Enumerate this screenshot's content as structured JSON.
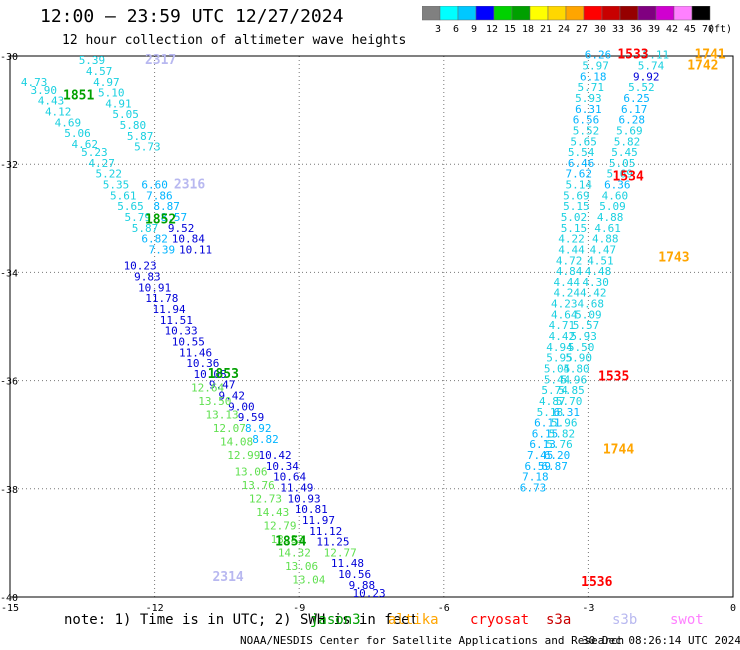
{
  "header": {
    "title": "12:00 — 23:59 UTC 12/27/2024",
    "subtitle": "12 hour collection of altimeter wave heights"
  },
  "colorbar": {
    "labels": [
      "3",
      "6",
      "9",
      "12",
      "15",
      "18",
      "21",
      "24",
      "27",
      "30",
      "33",
      "36",
      "39",
      "42",
      "45",
      "70"
    ],
    "unit": "(ft)",
    "colors": [
      "#808080",
      "#00ffff",
      "#00c8ff",
      "#0000ff",
      "#00d200",
      "#00a000",
      "#ffff00",
      "#ffd700",
      "#ffa500",
      "#ff0000",
      "#c80000",
      "#960000",
      "#800080",
      "#d000d0",
      "#ff80ff",
      "#000000"
    ]
  },
  "footnote": {
    "note": "note:  1) Time is in UTC; 2) SWH is in feet",
    "credit": "NOAA/NESDIS Center for Satellite Applications and Research",
    "timestamp": "30 Dec 08:26:14 UTC 2024"
  },
  "legend": [
    {
      "label": "jason3",
      "color": "#00a000"
    },
    {
      "label": "altika",
      "color": "#ffa500"
    },
    {
      "label": "cryosat",
      "color": "#ff0000"
    },
    {
      "label": "s3a",
      "color": "#c80000"
    },
    {
      "label": "s3b",
      "color": "#b8b8f0"
    },
    {
      "label": "swot",
      "color": "#ff80ff"
    }
  ],
  "chart_data": {
    "type": "scatter",
    "title": "12 hour collection of altimeter wave heights",
    "xlim": [
      -15,
      0
    ],
    "ylim": [
      -40,
      -30
    ],
    "x_ticks": [
      "-15",
      "-12",
      "-9",
      "-6",
      "-3",
      "0"
    ],
    "y_ticks": [
      "-30",
      "-32",
      "-34",
      "-36",
      "-38",
      "-40"
    ],
    "grid": "dotted",
    "track_labels": [
      {
        "text": "2317",
        "x": -12.2,
        "y": -30.15,
        "color": "#b8b8f0"
      },
      {
        "text": "1851",
        "x": -13.9,
        "y": -30.8,
        "color": "#00a000"
      },
      {
        "text": "2316",
        "x": -11.6,
        "y": -32.45,
        "color": "#b8b8f0"
      },
      {
        "text": "1852",
        "x": -12.2,
        "y": -33.1,
        "color": "#00a000"
      },
      {
        "text": "1853",
        "x": -10.9,
        "y": -35.95,
        "color": "#00a000"
      },
      {
        "text": "1854",
        "x": -9.5,
        "y": -39.05,
        "color": "#00a000"
      },
      {
        "text": "2314",
        "x": -10.8,
        "y": -39.7,
        "color": "#b8b8f0"
      },
      {
        "text": "1533",
        "x": -2.4,
        "y": -30.05,
        "color": "#ff0000"
      },
      {
        "text": "1741",
        "x": -0.8,
        "y": -30.05,
        "color": "#ffa500"
      },
      {
        "text": "1742",
        "x": -0.95,
        "y": -30.25,
        "color": "#ffa500"
      },
      {
        "text": "1534",
        "x": -2.5,
        "y": -32.3,
        "color": "#ff0000"
      },
      {
        "text": "1743",
        "x": -1.55,
        "y": -33.8,
        "color": "#ffa500"
      },
      {
        "text": "1535",
        "x": -2.8,
        "y": -36.0,
        "color": "#ff0000"
      },
      {
        "text": "1744",
        "x": -2.7,
        "y": -37.35,
        "color": "#ffa500"
      },
      {
        "text": "1536",
        "x": -3.15,
        "y": -39.8,
        "color": "#ff0000"
      }
    ],
    "series": [
      {
        "name": "jason3",
        "track": "1851-1852",
        "points": [
          {
            "x": -14.5,
            "y": -30.55,
            "v": 4.73
          },
          {
            "x": -14.3,
            "y": -30.7,
            "v": 3.9
          },
          {
            "x": -14.15,
            "y": -30.9,
            "v": 4.43
          },
          {
            "x": -14.0,
            "y": -31.1,
            "v": 4.12
          },
          {
            "x": -13.8,
            "y": -31.3,
            "v": 4.69
          },
          {
            "x": -13.6,
            "y": -31.5,
            "v": 5.06
          },
          {
            "x": -13.45,
            "y": -31.7,
            "v": 4.62
          },
          {
            "x": -13.25,
            "y": -31.85,
            "v": 5.23
          },
          {
            "x": -13.1,
            "y": -32.05,
            "v": 4.27
          },
          {
            "x": -12.95,
            "y": -32.25,
            "v": 5.22
          },
          {
            "x": -12.8,
            "y": -32.45,
            "v": 5.35
          },
          {
            "x": -12.65,
            "y": -32.65,
            "v": 5.61
          },
          {
            "x": -12.5,
            "y": -32.85,
            "v": 5.65
          },
          {
            "x": -12.35,
            "y": -33.05,
            "v": 5.79
          },
          {
            "x": -12.2,
            "y": -33.25,
            "v": 5.87
          },
          {
            "x": -12.0,
            "y": -33.45,
            "v": 6.82
          },
          {
            "x": -11.85,
            "y": -33.65,
            "v": 7.39
          }
        ]
      },
      {
        "name": "jason3",
        "track": "1852-1853",
        "points": [
          {
            "x": -12.3,
            "y": -33.95,
            "v": 10.23
          },
          {
            "x": -12.15,
            "y": -34.15,
            "v": 9.83
          },
          {
            "x": -12.0,
            "y": -34.35,
            "v": 10.91
          },
          {
            "x": -11.85,
            "y": -34.55,
            "v": 11.78
          },
          {
            "x": -11.7,
            "y": -34.75,
            "v": 11.94
          },
          {
            "x": -11.55,
            "y": -34.95,
            "v": 11.51
          },
          {
            "x": -11.45,
            "y": -35.15,
            "v": 10.33
          },
          {
            "x": -11.3,
            "y": -35.35,
            "v": 10.55
          },
          {
            "x": -11.15,
            "y": -35.55,
            "v": 11.46
          },
          {
            "x": -11.0,
            "y": -35.75,
            "v": 10.36
          },
          {
            "x": -10.85,
            "y": -35.95,
            "v": 10.08
          },
          {
            "x": -10.6,
            "y": -36.15,
            "v": 9.47
          },
          {
            "x": -10.4,
            "y": -36.35,
            "v": 9.42
          },
          {
            "x": -10.2,
            "y": -36.55,
            "v": 9.0
          },
          {
            "x": -10.0,
            "y": -36.75,
            "v": 9.59
          },
          {
            "x": -9.85,
            "y": -36.95,
            "v": 8.92
          },
          {
            "x": -9.7,
            "y": -37.15,
            "v": 8.82
          }
        ]
      },
      {
        "name": "jason3",
        "track": "1853-1854",
        "points": [
          {
            "x": -10.9,
            "y": -36.2,
            "v": 12.64
          },
          {
            "x": -10.75,
            "y": -36.45,
            "v": 13.5
          },
          {
            "x": -10.6,
            "y": -36.7,
            "v": 13.13
          },
          {
            "x": -10.45,
            "y": -36.95,
            "v": 12.07
          },
          {
            "x": -10.3,
            "y": -37.2,
            "v": 14.08
          },
          {
            "x": -10.15,
            "y": -37.45,
            "v": 12.99
          },
          {
            "x": -10.0,
            "y": -37.75,
            "v": 13.06
          },
          {
            "x": -9.85,
            "y": -38.0,
            "v": 13.76
          },
          {
            "x": -9.7,
            "y": -38.25,
            "v": 12.73
          },
          {
            "x": -9.55,
            "y": -38.5,
            "v": 14.43
          },
          {
            "x": -9.4,
            "y": -38.75,
            "v": 12.79
          },
          {
            "x": -9.25,
            "y": -39.0,
            "v": 13.83
          },
          {
            "x": -9.1,
            "y": -39.25,
            "v": 14.32
          },
          {
            "x": -8.95,
            "y": -39.5,
            "v": 13.06
          },
          {
            "x": -8.8,
            "y": -39.75,
            "v": 13.04
          }
        ]
      },
      {
        "name": "jason3",
        "track": "1854",
        "points": [
          {
            "x": -9.5,
            "y": -37.45,
            "v": 10.42
          },
          {
            "x": -9.35,
            "y": -37.65,
            "v": 10.34
          },
          {
            "x": -9.2,
            "y": -37.85,
            "v": 10.64
          },
          {
            "x": -9.05,
            "y": -38.05,
            "v": 11.49
          },
          {
            "x": -8.9,
            "y": -38.25,
            "v": 10.93
          },
          {
            "x": -8.75,
            "y": -38.45,
            "v": 10.81
          },
          {
            "x": -8.6,
            "y": -38.65,
            "v": 11.97
          },
          {
            "x": -8.45,
            "y": -38.85,
            "v": 11.12
          },
          {
            "x": -8.3,
            "y": -39.05,
            "v": 11.25
          },
          {
            "x": -8.15,
            "y": -39.25,
            "v": 12.77
          },
          {
            "x": -8.0,
            "y": -39.45,
            "v": 11.48
          },
          {
            "x": -7.85,
            "y": -39.65,
            "v": 10.56
          },
          {
            "x": -7.7,
            "y": -39.85,
            "v": 9.88
          },
          {
            "x": -7.55,
            "y": -40.0,
            "v": 10.23
          }
        ]
      },
      {
        "name": "swot",
        "track": "2317-2316",
        "points": [
          {
            "x": -13.3,
            "y": -30.15,
            "v": 5.39
          },
          {
            "x": -13.15,
            "y": -30.35,
            "v": 4.57
          },
          {
            "x": -13.0,
            "y": -30.55,
            "v": 4.97
          },
          {
            "x": -12.9,
            "y": -30.75,
            "v": 5.1
          },
          {
            "x": -12.75,
            "y": -30.95,
            "v": 4.91
          },
          {
            "x": -12.6,
            "y": -31.15,
            "v": 5.05
          },
          {
            "x": -12.45,
            "y": -31.35,
            "v": 5.8
          },
          {
            "x": -12.3,
            "y": -31.55,
            "v": 5.87
          },
          {
            "x": -12.15,
            "y": -31.75,
            "v": 5.73
          },
          {
            "x": -12.0,
            "y": -32.45,
            "v": 6.6
          },
          {
            "x": -11.9,
            "y": -32.65,
            "v": 7.86
          },
          {
            "x": -11.75,
            "y": -32.85,
            "v": 8.87
          },
          {
            "x": -11.6,
            "y": -33.05,
            "v": 8.57
          },
          {
            "x": -11.45,
            "y": -33.25,
            "v": 9.52
          },
          {
            "x": -11.3,
            "y": -33.45,
            "v": 10.84
          },
          {
            "x": -11.15,
            "y": -33.65,
            "v": 10.11
          }
        ]
      },
      {
        "name": "cryosat",
        "track": "1533-1536 west",
        "points": [
          {
            "x": -2.8,
            "y": -30.05,
            "v": 6.26
          },
          {
            "x": -2.85,
            "y": -30.25,
            "v": 5.97
          },
          {
            "x": -2.9,
            "y": -30.45,
            "v": 6.18
          },
          {
            "x": -2.95,
            "y": -30.65,
            "v": 5.71
          },
          {
            "x": -3.0,
            "y": -30.85,
            "v": 5.93
          },
          {
            "x": -3.0,
            "y": -31.05,
            "v": 6.31
          },
          {
            "x": -3.05,
            "y": -31.25,
            "v": 6.56
          },
          {
            "x": -3.05,
            "y": -31.45,
            "v": 5.52
          },
          {
            "x": -3.1,
            "y": -31.65,
            "v": 5.65
          },
          {
            "x": -3.15,
            "y": -31.85,
            "v": 5.54
          },
          {
            "x": -3.15,
            "y": -32.05,
            "v": 6.46
          },
          {
            "x": -3.2,
            "y": -32.25,
            "v": 7.62
          },
          {
            "x": -3.2,
            "y": -32.45,
            "v": 5.14
          },
          {
            "x": -3.25,
            "y": -32.65,
            "v": 5.69
          },
          {
            "x": -3.25,
            "y": -32.85,
            "v": 5.15
          },
          {
            "x": -3.3,
            "y": -33.05,
            "v": 5.02
          },
          {
            "x": -3.3,
            "y": -33.25,
            "v": 5.15
          },
          {
            "x": -3.35,
            "y": -33.45,
            "v": 4.22
          },
          {
            "x": -3.35,
            "y": -33.65,
            "v": 4.44
          },
          {
            "x": -3.4,
            "y": -33.85,
            "v": 4.72
          },
          {
            "x": -3.4,
            "y": -34.05,
            "v": 4.84
          },
          {
            "x": -3.45,
            "y": -34.25,
            "v": 4.44
          },
          {
            "x": -3.45,
            "y": -34.45,
            "v": 4.24
          },
          {
            "x": -3.5,
            "y": -34.65,
            "v": 4.23
          },
          {
            "x": -3.5,
            "y": -34.85,
            "v": 4.64
          },
          {
            "x": -3.55,
            "y": -35.05,
            "v": 4.71
          },
          {
            "x": -3.55,
            "y": -35.25,
            "v": 4.42
          },
          {
            "x": -3.6,
            "y": -35.45,
            "v": 4.94
          },
          {
            "x": -3.6,
            "y": -35.65,
            "v": 5.95
          },
          {
            "x": -3.65,
            "y": -35.85,
            "v": 5.05
          },
          {
            "x": -3.65,
            "y": -36.05,
            "v": 5.44
          },
          {
            "x": -3.7,
            "y": -36.25,
            "v": 5.74
          },
          {
            "x": -3.75,
            "y": -36.45,
            "v": 4.87
          },
          {
            "x": -3.8,
            "y": -36.65,
            "v": 5.18
          },
          {
            "x": -3.85,
            "y": -36.85,
            "v": 6.11
          },
          {
            "x": -3.9,
            "y": -37.05,
            "v": 6.15
          },
          {
            "x": -3.95,
            "y": -37.25,
            "v": 6.13
          },
          {
            "x": -4.0,
            "y": -37.45,
            "v": 7.45
          },
          {
            "x": -4.05,
            "y": -37.65,
            "v": 6.59
          },
          {
            "x": -4.1,
            "y": -37.85,
            "v": 7.18
          },
          {
            "x": -4.15,
            "y": -38.05,
            "v": 6.73
          }
        ]
      },
      {
        "name": "cryosat",
        "track": "1533-1536 east",
        "points": [
          {
            "x": -1.6,
            "y": -30.05,
            "v": 5.11
          },
          {
            "x": -1.7,
            "y": -30.25,
            "v": 5.74
          },
          {
            "x": -1.8,
            "y": -30.45,
            "v": 9.92
          },
          {
            "x": -1.9,
            "y": -30.65,
            "v": 5.52
          },
          {
            "x": -2.0,
            "y": -30.85,
            "v": 6.25
          },
          {
            "x": -2.05,
            "y": -31.05,
            "v": 6.17
          },
          {
            "x": -2.1,
            "y": -31.25,
            "v": 6.28
          },
          {
            "x": -2.15,
            "y": -31.45,
            "v": 5.69
          },
          {
            "x": -2.2,
            "y": -31.65,
            "v": 5.82
          },
          {
            "x": -2.25,
            "y": -31.85,
            "v": 5.45
          },
          {
            "x": -2.3,
            "y": -32.05,
            "v": 5.05
          },
          {
            "x": -2.35,
            "y": -32.25,
            "v": 5.69
          },
          {
            "x": -2.4,
            "y": -32.45,
            "v": 6.36
          },
          {
            "x": -2.45,
            "y": -32.65,
            "v": 4.6
          },
          {
            "x": -2.5,
            "y": -32.85,
            "v": 5.09
          },
          {
            "x": -2.55,
            "y": -33.05,
            "v": 4.88
          },
          {
            "x": -2.6,
            "y": -33.25,
            "v": 4.61
          },
          {
            "x": -2.65,
            "y": -33.45,
            "v": 4.88
          },
          {
            "x": -2.7,
            "y": -33.65,
            "v": 4.47
          },
          {
            "x": -2.75,
            "y": -33.85,
            "v": 4.51
          },
          {
            "x": -2.8,
            "y": -34.05,
            "v": 4.48
          },
          {
            "x": -2.85,
            "y": -34.25,
            "v": 4.3
          },
          {
            "x": -2.9,
            "y": -34.45,
            "v": 4.42
          },
          {
            "x": -2.95,
            "y": -34.65,
            "v": 4.68
          },
          {
            "x": -3.0,
            "y": -34.85,
            "v": 5.09
          },
          {
            "x": -3.05,
            "y": -35.05,
            "v": 5.57
          },
          {
            "x": -3.1,
            "y": -35.25,
            "v": 5.93
          },
          {
            "x": -3.15,
            "y": -35.45,
            "v": 5.5
          },
          {
            "x": -3.2,
            "y": -35.65,
            "v": 5.9
          },
          {
            "x": -3.25,
            "y": -35.85,
            "v": 4.8
          },
          {
            "x": -3.3,
            "y": -36.05,
            "v": 5.96
          },
          {
            "x": -3.35,
            "y": -36.25,
            "v": 5.85
          },
          {
            "x": -3.4,
            "y": -36.45,
            "v": 5.7
          },
          {
            "x": -3.45,
            "y": -36.65,
            "v": 6.31
          },
          {
            "x": -3.5,
            "y": -36.85,
            "v": 5.96
          },
          {
            "x": -3.55,
            "y": -37.05,
            "v": 5.82
          },
          {
            "x": -3.6,
            "y": -37.25,
            "v": 5.76
          },
          {
            "x": -3.65,
            "y": -37.45,
            "v": 6.2
          },
          {
            "x": -3.7,
            "y": -37.65,
            "v": 6.87
          }
        ]
      }
    ]
  }
}
